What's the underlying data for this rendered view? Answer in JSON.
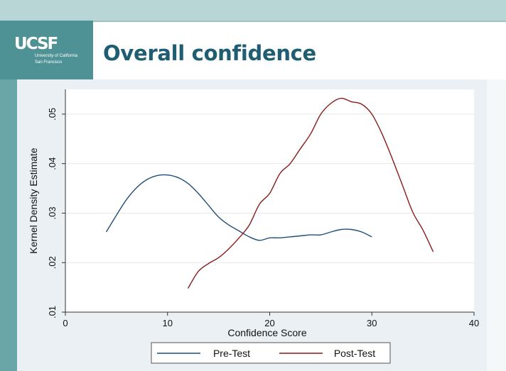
{
  "slide": {
    "title": "Overall confidence",
    "logo": {
      "mark": "UCSF",
      "line1": "University of California",
      "line2": "San Francisco"
    }
  },
  "chart_data": {
    "type": "line",
    "xlabel": "Confidence Score",
    "ylabel": "Kernel Density Estimate",
    "xlim": [
      0,
      40
    ],
    "ylim": [
      0.01,
      0.055
    ],
    "x_ticks": [
      0,
      10,
      20,
      30,
      40
    ],
    "y_ticks": [
      0.01,
      0.02,
      0.03,
      0.04,
      0.05
    ],
    "x_tick_labels": [
      "0",
      "10",
      "20",
      "30",
      "40"
    ],
    "y_tick_labels": [
      ".01",
      ".02",
      ".03",
      ".04",
      ".05"
    ],
    "grid": true,
    "legend_position": "bottom",
    "series": [
      {
        "name": "Pre-Test",
        "color": "#1f4e79",
        "points": [
          [
            4,
            0.0262
          ],
          [
            5,
            0.0296
          ],
          [
            6,
            0.0328
          ],
          [
            7,
            0.0352
          ],
          [
            8,
            0.0368
          ],
          [
            9,
            0.0376
          ],
          [
            10,
            0.0377
          ],
          [
            11,
            0.0372
          ],
          [
            12,
            0.036
          ],
          [
            13,
            0.034
          ],
          [
            14,
            0.0316
          ],
          [
            15,
            0.0292
          ],
          [
            16,
            0.0276
          ],
          [
            17,
            0.0264
          ],
          [
            18,
            0.0252
          ],
          [
            19,
            0.0245
          ],
          [
            20,
            0.025
          ],
          [
            21,
            0.025
          ],
          [
            22,
            0.0252
          ],
          [
            23,
            0.0254
          ],
          [
            24,
            0.0256
          ],
          [
            25,
            0.0256
          ],
          [
            26,
            0.0262
          ],
          [
            27,
            0.0267
          ],
          [
            28,
            0.0267
          ],
          [
            29,
            0.0262
          ],
          [
            30,
            0.0252
          ]
        ]
      },
      {
        "name": "Post-Test",
        "color": "#8b1a1a",
        "points": [
          [
            12,
            0.0148
          ],
          [
            13,
            0.0182
          ],
          [
            14,
            0.0198
          ],
          [
            15,
            0.021
          ],
          [
            16,
            0.0228
          ],
          [
            17,
            0.025
          ],
          [
            18,
            0.0276
          ],
          [
            19,
            0.0318
          ],
          [
            20,
            0.034
          ],
          [
            21,
            0.038
          ],
          [
            22,
            0.04
          ],
          [
            23,
            0.043
          ],
          [
            24,
            0.046
          ],
          [
            25,
            0.05
          ],
          [
            26,
            0.0522
          ],
          [
            27,
            0.0532
          ],
          [
            28,
            0.0525
          ],
          [
            29,
            0.052
          ],
          [
            30,
            0.05
          ],
          [
            31,
            0.046
          ],
          [
            32,
            0.041
          ],
          [
            33,
            0.0356
          ],
          [
            34,
            0.0302
          ],
          [
            35,
            0.0266
          ],
          [
            36,
            0.0222
          ]
        ]
      }
    ]
  }
}
